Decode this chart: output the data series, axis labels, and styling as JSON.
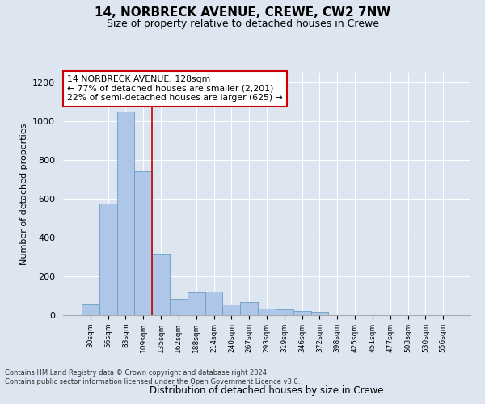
{
  "title1": "14, NORBRECK AVENUE, CREWE, CW2 7NW",
  "title2": "Size of property relative to detached houses in Crewe",
  "xlabel": "Distribution of detached houses by size in Crewe",
  "ylabel": "Number of detached properties",
  "categories": [
    "30sqm",
    "56sqm",
    "83sqm",
    "109sqm",
    "135sqm",
    "162sqm",
    "188sqm",
    "214sqm",
    "240sqm",
    "267sqm",
    "293sqm",
    "319sqm",
    "346sqm",
    "372sqm",
    "398sqm",
    "425sqm",
    "451sqm",
    "477sqm",
    "503sqm",
    "530sqm",
    "556sqm"
  ],
  "values": [
    57,
    575,
    1050,
    740,
    315,
    85,
    115,
    120,
    55,
    65,
    35,
    30,
    20,
    15,
    0,
    0,
    0,
    0,
    0,
    0,
    0
  ],
  "bar_color": "#aec6e8",
  "bar_edge_color": "#6a9fc0",
  "vline_x": 3.5,
  "vline_color": "#cc0000",
  "annotation_text": "14 NORBRECK AVENUE: 128sqm\n← 77% of detached houses are smaller (2,201)\n22% of semi-detached houses are larger (625) →",
  "annotation_box_color": "#ffffff",
  "annotation_box_edgecolor": "#cc0000",
  "ylim": [
    0,
    1250
  ],
  "yticks": [
    0,
    200,
    400,
    600,
    800,
    1000,
    1200
  ],
  "background_color": "#dde5f0",
  "grid_color": "#ffffff",
  "footer": "Contains HM Land Registry data © Crown copyright and database right 2024.\nContains public sector information licensed under the Open Government Licence v3.0."
}
